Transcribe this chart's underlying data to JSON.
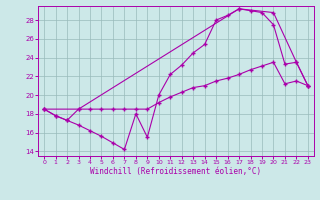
{
  "xlabel": "Windchill (Refroidissement éolien,°C)",
  "xlim": [
    -0.5,
    23.5
  ],
  "ylim": [
    13.5,
    29.5
  ],
  "yticks": [
    14,
    16,
    18,
    20,
    22,
    24,
    26,
    28
  ],
  "xticks": [
    0,
    1,
    2,
    3,
    4,
    5,
    6,
    7,
    8,
    9,
    10,
    11,
    12,
    13,
    14,
    15,
    16,
    17,
    18,
    19,
    20,
    21,
    22,
    23
  ],
  "bg_color": "#cce8e8",
  "line_color": "#aa00aa",
  "grid_color": "#99bbbb",
  "line1_y": [
    18.5,
    17.8,
    17.3,
    16.8,
    16.2,
    15.6,
    14.9,
    14.2,
    18.0,
    15.5,
    20.0,
    22.2,
    23.2,
    24.5,
    25.4,
    28.0,
    28.5,
    29.2,
    29.0,
    28.8,
    27.5,
    23.3,
    23.5,
    21.0
  ],
  "line2_y": [
    18.5,
    17.8,
    17.3,
    18.5,
    18.5,
    18.5,
    18.5,
    18.5,
    18.5,
    18.5,
    19.2,
    19.8,
    20.3,
    20.8,
    21.0,
    21.5,
    21.8,
    22.2,
    22.7,
    23.1,
    23.5,
    21.2,
    21.5,
    21.0
  ],
  "line3_x": [
    0,
    3,
    17,
    20,
    22,
    23
  ],
  "line3_y": [
    18.5,
    18.5,
    29.2,
    28.8,
    23.5,
    21.0
  ]
}
